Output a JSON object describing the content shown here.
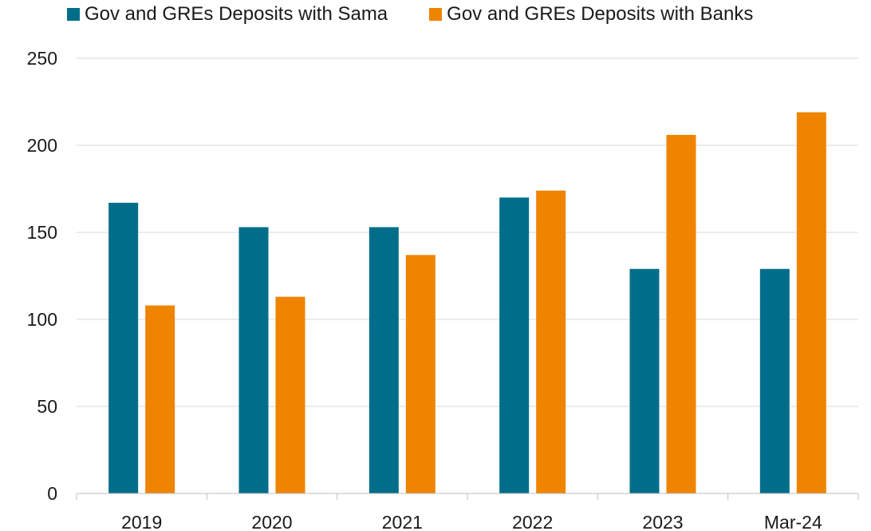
{
  "chart_data": {
    "type": "bar",
    "title": "",
    "xlabel": "",
    "ylabel": "",
    "categories": [
      "2019",
      "2020",
      "2021",
      "2022",
      "2023",
      "Mar-24"
    ],
    "series": [
      {
        "name": "Gov and GREs Deposits with Sama",
        "color": "#006e8a",
        "values": [
          167,
          153,
          153,
          170,
          129,
          129
        ]
      },
      {
        "name": "Gov and GREs Deposits with Banks",
        "color": "#ee8400",
        "values": [
          108,
          113,
          137,
          174,
          206,
          219
        ]
      }
    ],
    "ylim": [
      0,
      250
    ],
    "yticks": [
      0,
      50,
      100,
      150,
      200,
      250
    ],
    "grid": true,
    "legend_position": "top-left"
  }
}
